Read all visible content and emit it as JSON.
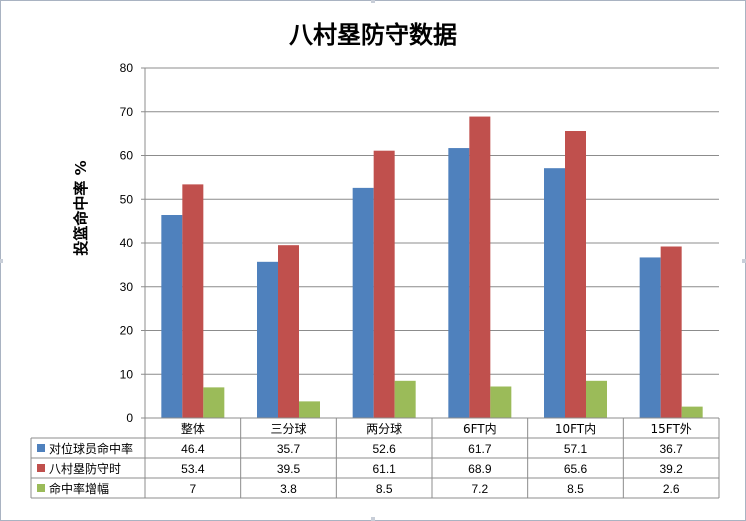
{
  "chart_data": {
    "type": "bar",
    "title": "八村塁防守数据",
    "ylabel": "投篮命中率 %",
    "xlabel": "",
    "ylim": [
      0,
      80
    ],
    "yticks": [
      0,
      10,
      20,
      30,
      40,
      50,
      60,
      70,
      80
    ],
    "grid": true,
    "legend": "data-table-left",
    "categories": [
      "整体",
      "三分球",
      "两分球",
      "6FT内",
      "10FT内",
      "15FT外"
    ],
    "series": [
      {
        "name": "对位球员命中率",
        "color": "#4f81bd",
        "values": [
          46.4,
          35.7,
          52.6,
          61.7,
          57.1,
          36.7
        ]
      },
      {
        "name": "八村塁防守时",
        "color": "#c0504d",
        "values": [
          53.4,
          39.5,
          61.1,
          68.9,
          65.6,
          39.2
        ]
      },
      {
        "name": "命中率增幅",
        "color": "#9bbb59",
        "values": [
          7,
          3.8,
          8.5,
          7.2,
          8.5,
          2.6
        ]
      }
    ]
  }
}
